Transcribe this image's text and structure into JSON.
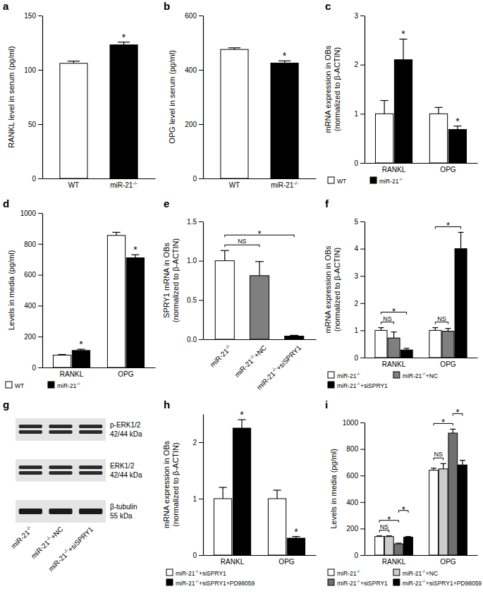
{
  "chart_data": [
    {
      "panel": "a",
      "type": "bar",
      "ylabel": [
        "RANKL level in serum (pg/ml)"
      ],
      "categories": [
        "WT",
        "miR-21-/-"
      ],
      "values": [
        106,
        123
      ],
      "errors": [
        2,
        2.5
      ],
      "colors": [
        "#ffffff",
        "#000000"
      ],
      "significance": [
        null,
        "*"
      ],
      "ylim": [
        0,
        150
      ],
      "yticks": [
        0,
        50,
        100,
        150
      ]
    },
    {
      "panel": "b",
      "type": "bar",
      "ylabel": [
        "OPG level in serum (pg/ml)"
      ],
      "categories": [
        "WT",
        "miR-21-/-"
      ],
      "values": [
        475,
        425
      ],
      "errors": [
        6,
        8
      ],
      "colors": [
        "#ffffff",
        "#000000"
      ],
      "significance": [
        null,
        "*"
      ],
      "ylim": [
        0,
        600
      ],
      "yticks": [
        0,
        200,
        400,
        600
      ]
    },
    {
      "panel": "c",
      "type": "bar",
      "ylabel": [
        "mRNA expression in OBs",
        "(normalized to β-ACTIN)"
      ],
      "categories": [
        "RANKL",
        "OPG"
      ],
      "series": [
        {
          "name": "WT",
          "color": "#ffffff",
          "values": [
            1,
            1
          ],
          "errors": [
            0.27,
            0.13
          ]
        },
        {
          "name": "miR-21-/-",
          "color": "#000000",
          "values": [
            2.1,
            0.68
          ],
          "errors": [
            0.42,
            0.07
          ],
          "significance": [
            "*",
            "*"
          ]
        }
      ],
      "ylim": [
        0,
        3
      ],
      "yticks": [
        0,
        1,
        2,
        3
      ],
      "legend": "bottom"
    },
    {
      "panel": "d",
      "type": "bar",
      "ylabel": [
        "Levels in media (pg/ml)"
      ],
      "categories": [
        "RANKL",
        "OPG"
      ],
      "series": [
        {
          "name": "WT",
          "color": "#ffffff",
          "values": [
            80,
            855
          ],
          "errors": [
            4,
            20
          ]
        },
        {
          "name": "miR-21-/-",
          "color": "#000000",
          "values": [
            110,
            710
          ],
          "errors": [
            8,
            20
          ],
          "significance": [
            "*",
            "*"
          ]
        }
      ],
      "ylim": [
        0,
        1000
      ],
      "yticks": [
        0,
        200,
        400,
        600,
        800,
        1000
      ],
      "legend": "bottom"
    },
    {
      "panel": "e",
      "type": "bar",
      "ylabel": [
        "SPRY1 mRNA in OBs",
        "(normalized to β-ACTIN)"
      ],
      "categories": [
        "miR-21-/-",
        "miR-21-/-+NC",
        "miR-21-/-+siSPRY1"
      ],
      "values": [
        1,
        0.81,
        0.04
      ],
      "errors": [
        0.13,
        0.18,
        0.01
      ],
      "colors": [
        "#ffffff",
        "#7f7f7f",
        "#000000"
      ],
      "brackets": [
        {
          "from": 0,
          "to": 1,
          "label": "NS"
        },
        {
          "from": 0,
          "to": 2,
          "label": "*"
        }
      ],
      "ylim": [
        0,
        1.5
      ],
      "yticks": [
        {
          "value": 0,
          "label": "0.0"
        },
        {
          "value": 0.5,
          "label": "0.5"
        },
        {
          "value": 1,
          "label": "1.0"
        },
        {
          "value": 1.5,
          "label": "1.5"
        }
      ]
    },
    {
      "panel": "f",
      "type": "bar",
      "ylabel": [
        "mRNA expression in OBs",
        "(normalized to β-ACTIN)"
      ],
      "categories": [
        "RANKL",
        "OPG"
      ],
      "series": [
        {
          "name": "miR-21-/-",
          "color": "#ffffff",
          "values": [
            1,
            1
          ],
          "errors": [
            0.1,
            0.1
          ]
        },
        {
          "name": "miR-21-/-+NC",
          "color": "#7f7f7f",
          "values": [
            0.72,
            0.97
          ],
          "errors": [
            0.22,
            0.1
          ]
        },
        {
          "name": "miR-21-/-+siSPRY1",
          "color": "#000000",
          "values": [
            0.28,
            4
          ],
          "errors": [
            0.06,
            0.6
          ]
        }
      ],
      "brackets": [
        {
          "category": 0,
          "from": 0,
          "to": 1,
          "label": "NS"
        },
        {
          "category": 0,
          "from": 0,
          "to": 2,
          "label": "*"
        },
        {
          "category": 1,
          "from": 0,
          "to": 1,
          "label": "NS"
        },
        {
          "category": 1,
          "from": 0,
          "to": 2,
          "label": "*"
        }
      ],
      "ylim": [
        0,
        5
      ],
      "yticks": [
        0,
        1,
        2,
        3,
        4,
        5
      ],
      "legend": "bottom"
    },
    {
      "panel": "g",
      "type": "blot",
      "rows": [
        {
          "label": "p-ERK1/2",
          "size": "42/44 kDa"
        },
        {
          "label": "ERK1/2",
          "size": "42/44 kDa"
        },
        {
          "label": "β-tubulin",
          "size": "55 kDa"
        }
      ],
      "lanes": [
        "miR-21-/-",
        "miR-21-/-+NC",
        "miR-21-/-+siSPRY1"
      ]
    },
    {
      "panel": "h",
      "type": "bar",
      "ylabel": [
        "mRNA expression in OBs",
        "(normalized to β-ACTIN)"
      ],
      "categories": [
        "RANKL",
        "OPG"
      ],
      "series": [
        {
          "name": "miR-21-/-+siSPRY1",
          "color": "#ffffff",
          "values": [
            1,
            1
          ],
          "errors": [
            0.2,
            0.15
          ]
        },
        {
          "name": "miR-21-/-+siSPRY1+PD98059",
          "color": "#000000",
          "values": [
            2.25,
            0.3
          ],
          "errors": [
            0.15,
            0.03
          ],
          "significance": [
            "*",
            "*"
          ]
        }
      ],
      "ylim": [
        0,
        2.5
      ],
      "yticks": [
        0,
        1,
        2
      ],
      "legend": "bottom"
    },
    {
      "panel": "i",
      "type": "bar",
      "ylabel": [
        "Levels in media (pg/ml)"
      ],
      "categories": [
        "RANKL",
        "OPG"
      ],
      "series": [
        {
          "name": "miR-21-/-",
          "color": "#ffffff",
          "values": [
            140,
            640
          ],
          "errors": [
            5,
            15
          ]
        },
        {
          "name": "miR-21-/-+NC",
          "color": "#cccccc",
          "values": [
            140,
            650
          ],
          "errors": [
            5,
            40
          ]
        },
        {
          "name": "miR-21-/-+siSPRY1",
          "color": "#707070",
          "values": [
            85,
            920
          ],
          "errors": [
            5,
            30
          ]
        },
        {
          "name": "miR-21-/-+siSPRY1+PD98059",
          "color": "#000000",
          "values": [
            135,
            680
          ],
          "errors": [
            5,
            35
          ]
        }
      ],
      "brackets": [
        {
          "category": 0,
          "from": 0,
          "to": 1,
          "label": "NS"
        },
        {
          "category": 0,
          "from": 0,
          "to": 2,
          "label": "*"
        },
        {
          "category": 0,
          "from": 2,
          "to": 3,
          "label": "*"
        },
        {
          "category": 1,
          "from": 0,
          "to": 1,
          "label": "NS"
        },
        {
          "category": 1,
          "from": 0,
          "to": 2,
          "label": "*"
        },
        {
          "category": 1,
          "from": 2,
          "to": 3,
          "label": "*"
        }
      ],
      "ylim": [
        0,
        1000
      ],
      "yticks": [
        0,
        200,
        400,
        600,
        800,
        1000
      ],
      "legend": "bottom"
    }
  ]
}
